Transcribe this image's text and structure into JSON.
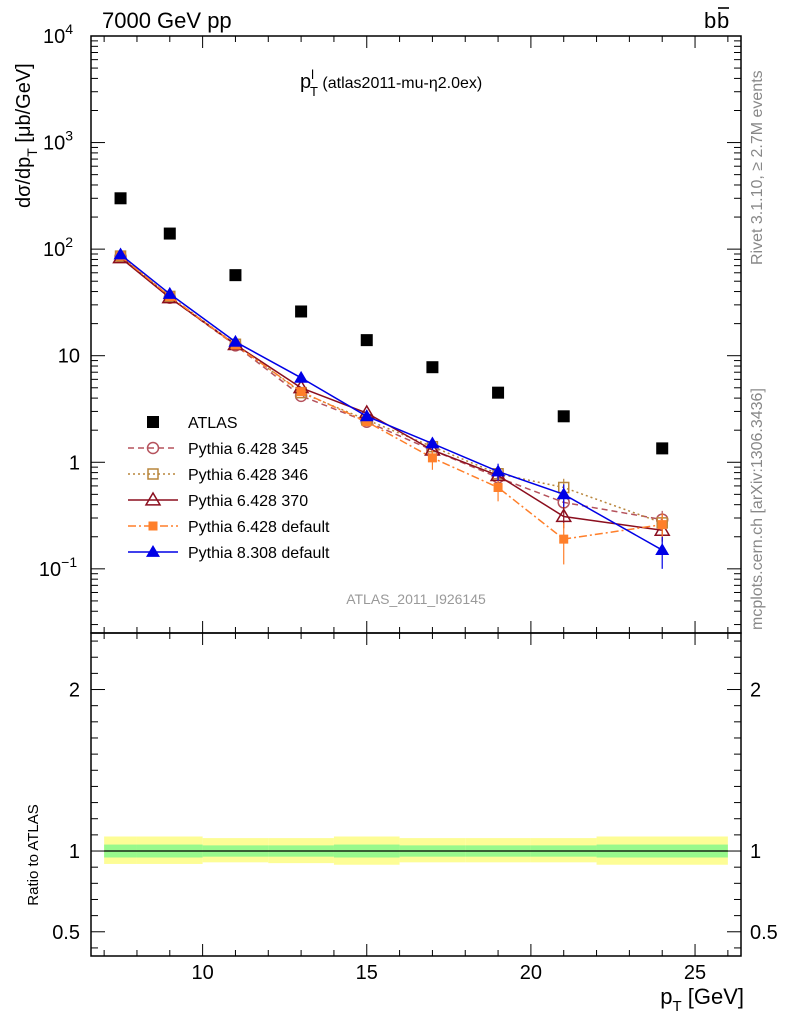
{
  "header": {
    "left": "7000 GeV pp",
    "right_base": "b",
    "right_bar": "b"
  },
  "side_labels": {
    "rivet": "Rivet 3.1.10, ≥ 2.7M events",
    "mcplots": "mcplots.cern.ch [arXiv:1306.3436]"
  },
  "plot_title": {
    "main": "p",
    "sup": "l",
    "sub": "T",
    "rest": " (atlas2011-mu-η2.0ex)"
  },
  "analysis_label": "ATLAS_2011_I926145",
  "colors": {
    "atlas": "#000000",
    "p345": "#b5525c",
    "p346": "#b8853c",
    "p370": "#8b0e1e",
    "pdef": "#ff7f2a",
    "p8": "#0000e6",
    "band_inner": "#98f98c",
    "band_outer": "#fdfd96"
  },
  "chart_data": [
    {
      "type": "scatter",
      "panel": "main",
      "ylabel": {
        "pre": "dσ/dp",
        "sub": "T",
        "post": " [μb/GeV]"
      },
      "yscale": "log",
      "ylim": [
        0.025,
        10000
      ],
      "xlim": [
        6.6,
        26.4
      ],
      "ytick_labels": [
        {
          "value": 0.1,
          "base": "10",
          "exp": "−1"
        },
        {
          "value": 1,
          "base": "1",
          "exp": ""
        },
        {
          "value": 10,
          "base": "10",
          "exp": ""
        },
        {
          "value": 100,
          "base": "10",
          "exp": "2"
        },
        {
          "value": 1000,
          "base": "10",
          "exp": "3"
        },
        {
          "value": 10000,
          "base": "10",
          "exp": "4"
        }
      ],
      "legend": {
        "placement": "lower-left"
      },
      "series": [
        {
          "name": "ATLAS",
          "key": "atlas",
          "style": "data",
          "marker": "square-filled",
          "x": [
            7.5,
            9,
            11,
            13,
            15,
            17,
            19,
            21,
            24
          ],
          "y": [
            300,
            140,
            57,
            26,
            14,
            7.8,
            4.5,
            2.7,
            1.35
          ]
        },
        {
          "name": "Pythia 6.428 345",
          "key": "p345",
          "style": "dashed",
          "marker": "circle-open",
          "x": [
            7.5,
            9,
            11,
            13,
            15,
            17,
            19,
            21,
            24
          ],
          "y": [
            85,
            35,
            12.5,
            4.2,
            2.4,
            1.3,
            0.72,
            0.42,
            0.29
          ],
          "err": [
            0,
            0,
            0,
            0,
            0.2,
            0.15,
            0.1,
            0.08,
            0.06
          ]
        },
        {
          "name": "Pythia 6.428 346",
          "key": "p346",
          "style": "dotted",
          "marker": "square-open",
          "x": [
            7.5,
            9,
            11,
            13,
            15,
            17,
            19,
            21,
            24
          ],
          "y": [
            86,
            36,
            12.8,
            4.5,
            2.5,
            1.4,
            0.78,
            0.58,
            0.27
          ],
          "err": [
            0,
            0,
            0,
            0,
            0.2,
            0.15,
            0.1,
            0.12,
            0.06
          ]
        },
        {
          "name": "Pythia 6.428 370",
          "key": "p370",
          "style": "solid",
          "marker": "triangle-open",
          "x": [
            7.5,
            9,
            11,
            13,
            15,
            17,
            19,
            21,
            24
          ],
          "y": [
            83,
            35,
            12.7,
            5.0,
            2.9,
            1.3,
            0.75,
            0.31,
            0.23
          ],
          "err": [
            0,
            0,
            0,
            0,
            0.2,
            0.15,
            0.1,
            0.07,
            0.05
          ]
        },
        {
          "name": "Pythia 6.428 default",
          "key": "pdef",
          "style": "dashdot",
          "marker": "square-filled-small",
          "x": [
            7.5,
            9,
            11,
            13,
            15,
            17,
            19,
            21,
            24
          ],
          "y": [
            86,
            36,
            12.6,
            4.6,
            2.4,
            1.1,
            0.58,
            0.19,
            0.26
          ],
          "err": [
            0,
            0,
            0,
            0,
            0.2,
            0.25,
            0.15,
            0.08,
            0.07
          ]
        },
        {
          "name": "Pythia 8.308 default",
          "key": "p8",
          "style": "solid",
          "marker": "triangle-filled",
          "x": [
            7.5,
            9,
            11,
            13,
            15,
            17,
            19,
            21,
            24
          ],
          "y": [
            89,
            38,
            13.5,
            6.2,
            2.7,
            1.5,
            0.82,
            0.5,
            0.15
          ],
          "err": [
            0,
            0,
            0,
            0,
            0.2,
            0.2,
            0.15,
            0.12,
            0.05
          ]
        }
      ]
    },
    {
      "type": "area",
      "panel": "ratio",
      "ylabel": "Ratio to ATLAS",
      "ylim": [
        0.35,
        2.35
      ],
      "xlabel": {
        "pre": "p",
        "sub": "T",
        "post": " [GeV]"
      },
      "xlim": [
        6.6,
        26.4
      ],
      "xtick_labels": [
        "10",
        "15",
        "20",
        "25"
      ],
      "xtick_values": [
        10,
        15,
        20,
        25
      ],
      "ytick_labels": [
        "0.5",
        "1",
        "2"
      ],
      "ytick_values": [
        0.5,
        1,
        2
      ],
      "bins": [
        {
          "lo": 7,
          "hi": 8,
          "inner": [
            0.96,
            1.04
          ],
          "outer": [
            0.92,
            1.09
          ]
        },
        {
          "lo": 8,
          "hi": 10,
          "inner": [
            0.96,
            1.04
          ],
          "outer": [
            0.92,
            1.09
          ]
        },
        {
          "lo": 10,
          "hi": 12,
          "inner": [
            0.965,
            1.035
          ],
          "outer": [
            0.93,
            1.08
          ]
        },
        {
          "lo": 12,
          "hi": 14,
          "inner": [
            0.965,
            1.035
          ],
          "outer": [
            0.925,
            1.08
          ]
        },
        {
          "lo": 14,
          "hi": 16,
          "inner": [
            0.96,
            1.04
          ],
          "outer": [
            0.915,
            1.09
          ]
        },
        {
          "lo": 16,
          "hi": 18,
          "inner": [
            0.965,
            1.035
          ],
          "outer": [
            0.93,
            1.08
          ]
        },
        {
          "lo": 18,
          "hi": 20,
          "inner": [
            0.965,
            1.035
          ],
          "outer": [
            0.93,
            1.08
          ]
        },
        {
          "lo": 20,
          "hi": 22,
          "inner": [
            0.965,
            1.035
          ],
          "outer": [
            0.93,
            1.08
          ]
        },
        {
          "lo": 22,
          "hi": 26,
          "inner": [
            0.96,
            1.04
          ],
          "outer": [
            0.915,
            1.09
          ]
        }
      ],
      "reference_value": 1
    }
  ]
}
